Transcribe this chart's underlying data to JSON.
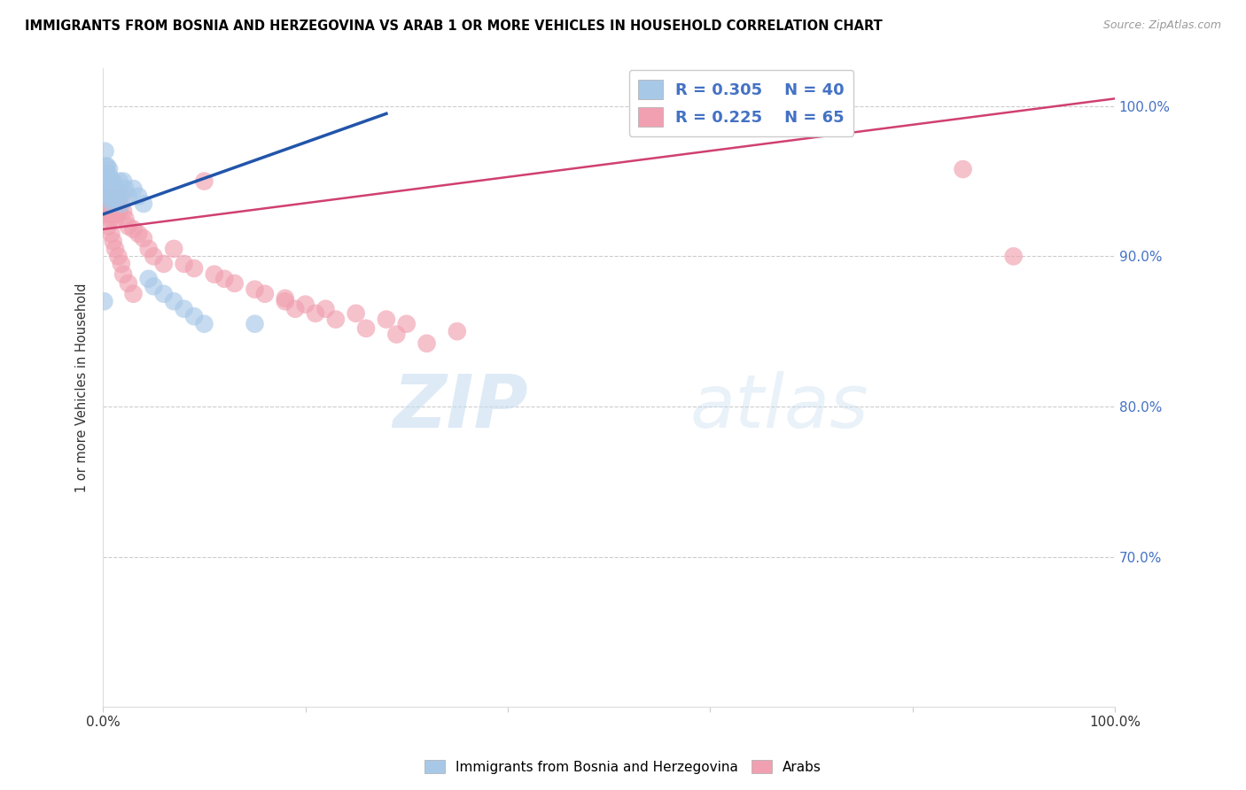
{
  "title": "IMMIGRANTS FROM BOSNIA AND HERZEGOVINA VS ARAB 1 OR MORE VEHICLES IN HOUSEHOLD CORRELATION CHART",
  "source": "Source: ZipAtlas.com",
  "ylabel": "1 or more Vehicles in Household",
  "legend_label1": "Immigrants from Bosnia and Herzegovina",
  "legend_label2": "Arabs",
  "R1": 0.305,
  "N1": 40,
  "R2": 0.225,
  "N2": 65,
  "color_blue": "#a8c8e8",
  "color_blue_edge": "#7aaace",
  "color_blue_line": "#2255aa",
  "color_pink": "#f0a0b0",
  "color_pink_edge": "#d88090",
  "color_pink_line": "#d04070",
  "watermark_zip": "ZIP",
  "watermark_atlas": "atlas",
  "blue_line_x": [
    0.0,
    0.28
  ],
  "blue_line_y": [
    0.928,
    0.995
  ],
  "pink_line_x": [
    0.0,
    1.0
  ],
  "pink_line_y": [
    0.918,
    1.005
  ],
  "xlim": [
    0.0,
    1.0
  ],
  "ylim": [
    0.6,
    1.025
  ],
  "yticks": [
    0.7,
    0.8,
    0.9,
    1.0
  ],
  "ytick_labels": [
    "70.0%",
    "80.0%",
    "90.0%",
    "100.0%"
  ],
  "blue_x": [
    0.001,
    0.002,
    0.003,
    0.003,
    0.004,
    0.004,
    0.005,
    0.005,
    0.006,
    0.006,
    0.007,
    0.007,
    0.007,
    0.008,
    0.008,
    0.009,
    0.009,
    0.01,
    0.01,
    0.011,
    0.012,
    0.013,
    0.015,
    0.016,
    0.018,
    0.02,
    0.022,
    0.025,
    0.03,
    0.035,
    0.04,
    0.045,
    0.05,
    0.06,
    0.07,
    0.08,
    0.09,
    0.1,
    0.15,
    0.001
  ],
  "blue_y": [
    0.955,
    0.97,
    0.96,
    0.95,
    0.945,
    0.96,
    0.955,
    0.948,
    0.958,
    0.95,
    0.945,
    0.952,
    0.94,
    0.948,
    0.938,
    0.942,
    0.935,
    0.95,
    0.94,
    0.938,
    0.945,
    0.942,
    0.94,
    0.95,
    0.935,
    0.95,
    0.945,
    0.94,
    0.945,
    0.94,
    0.935,
    0.885,
    0.88,
    0.875,
    0.87,
    0.865,
    0.86,
    0.855,
    0.855,
    0.87
  ],
  "pink_x": [
    0.001,
    0.002,
    0.002,
    0.003,
    0.003,
    0.004,
    0.004,
    0.005,
    0.005,
    0.006,
    0.006,
    0.007,
    0.008,
    0.009,
    0.01,
    0.01,
    0.011,
    0.012,
    0.013,
    0.015,
    0.016,
    0.018,
    0.02,
    0.022,
    0.025,
    0.03,
    0.035,
    0.04,
    0.045,
    0.05,
    0.06,
    0.07,
    0.08,
    0.09,
    0.1,
    0.11,
    0.12,
    0.13,
    0.15,
    0.16,
    0.18,
    0.2,
    0.22,
    0.25,
    0.28,
    0.3,
    0.35,
    0.18,
    0.19,
    0.21,
    0.23,
    0.26,
    0.29,
    0.32,
    0.005,
    0.008,
    0.01,
    0.012,
    0.015,
    0.018,
    0.02,
    0.025,
    0.03,
    0.85,
    0.9
  ],
  "pink_y": [
    0.94,
    0.938,
    0.93,
    0.935,
    0.928,
    0.932,
    0.94,
    0.928,
    0.935,
    0.93,
    0.938,
    0.925,
    0.93,
    0.928,
    0.935,
    0.928,
    0.93,
    0.925,
    0.928,
    0.938,
    0.93,
    0.94,
    0.93,
    0.925,
    0.92,
    0.918,
    0.915,
    0.912,
    0.905,
    0.9,
    0.895,
    0.905,
    0.895,
    0.892,
    0.95,
    0.888,
    0.885,
    0.882,
    0.878,
    0.875,
    0.872,
    0.868,
    0.865,
    0.862,
    0.858,
    0.855,
    0.85,
    0.87,
    0.865,
    0.862,
    0.858,
    0.852,
    0.848,
    0.842,
    0.92,
    0.915,
    0.91,
    0.905,
    0.9,
    0.895,
    0.888,
    0.882,
    0.875,
    0.958,
    0.9
  ]
}
